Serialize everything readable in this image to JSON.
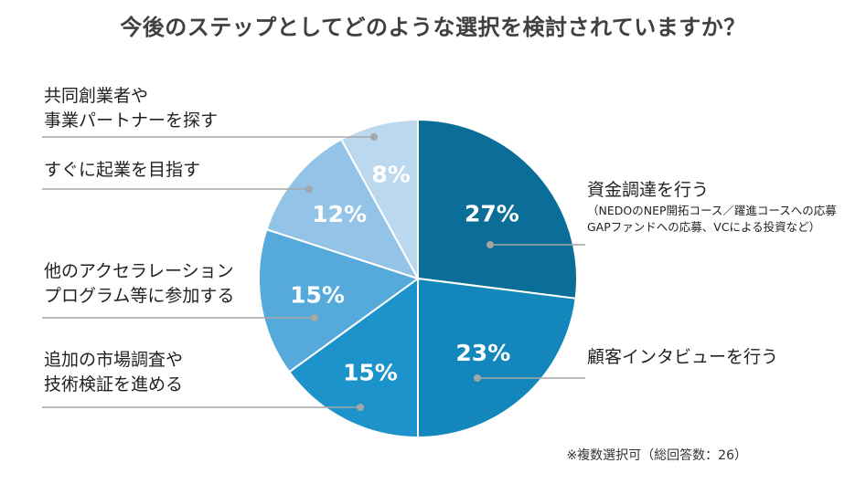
{
  "chart_data": {
    "type": "pie",
    "title": "今後のステップとしてどのような選択を検討されていますか？",
    "note": "※複数選択可（総回答数：26）",
    "slices": [
      {
        "label_lines": [
          "資金調達を行う"
        ],
        "sub_lines": [
          "（NEDOのNEP開拓コース／躍進コースへの応募",
          "GAPファンドへの応募、VCによる投資など）"
        ],
        "value": 27,
        "value_label": "27%",
        "color": "#0b6e99"
      },
      {
        "label_lines": [
          "顧客インタビューを行う"
        ],
        "sub_lines": [],
        "value": 23,
        "value_label": "23%",
        "color": "#1386bb"
      },
      {
        "label_lines": [
          "追加の市場調査や",
          "技術検証を進める"
        ],
        "sub_lines": [],
        "value": 15,
        "value_label": "15%",
        "color": "#1d93cb"
      },
      {
        "label_lines": [
          "他のアクセラレーション",
          "プログラム等に参加する"
        ],
        "sub_lines": [],
        "value": 15,
        "value_label": "15%",
        "color": "#55aadb"
      },
      {
        "label_lines": [
          "すぐに起業を目指す"
        ],
        "sub_lines": [],
        "value": 12,
        "value_label": "12%",
        "color": "#93c4e7"
      },
      {
        "label_lines": [
          "共同創業者や",
          "事業パートナーを探す"
        ],
        "sub_lines": [],
        "value": 8,
        "value_label": "8%",
        "color": "#bcd8ee"
      }
    ]
  }
}
